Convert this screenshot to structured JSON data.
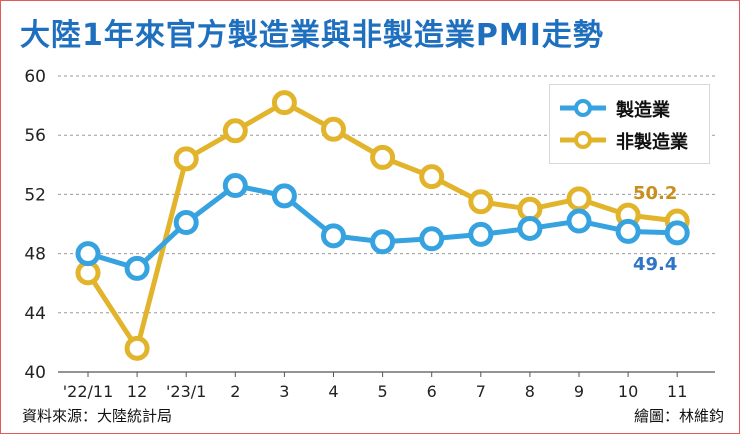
{
  "chart_data": {
    "type": "line",
    "title": "大陸1年來官方製造業與非製造業PMI走勢",
    "categories": [
      "'22/11",
      "12",
      "'23/1",
      "2",
      "3",
      "4",
      "5",
      "6",
      "7",
      "8",
      "9",
      "10",
      "11"
    ],
    "series": [
      {
        "name": "製造業",
        "color": "#36a3e0",
        "label_color": "#2f75c4",
        "values": [
          48.0,
          47.0,
          50.1,
          52.6,
          51.9,
          49.2,
          48.8,
          49.0,
          49.3,
          49.7,
          50.2,
          49.5,
          49.4
        ]
      },
      {
        "name": "非製造業",
        "color": "#e2b42c",
        "label_color": "#c98f1c",
        "values": [
          46.7,
          41.6,
          54.4,
          56.3,
          58.2,
          56.4,
          54.5,
          53.2,
          51.5,
          51.0,
          51.7,
          50.6,
          50.2
        ]
      }
    ],
    "end_labels": [
      "49.4",
      "50.2"
    ],
    "ylim": [
      40,
      60
    ],
    "yticks": [
      40,
      44,
      48,
      52,
      56,
      60
    ],
    "xlabel": "",
    "ylabel": "",
    "legend_position": "top-right",
    "grid": true
  },
  "footer": {
    "source": "資料來源：大陸統計局",
    "credit": "繪圖：林維鈞"
  }
}
